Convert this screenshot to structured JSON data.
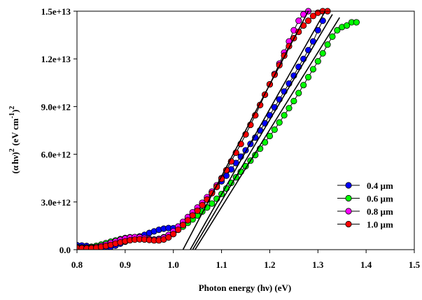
{
  "chart_data": {
    "type": "scatter",
    "xlabel": "Photon energy (hν) (eV)",
    "ylabel": {
      "symbol_a": "α",
      "symbol_h": "h",
      "symbol_nu": "ν",
      "exp1": "2",
      "unit": "(eV cm",
      "unit_exp": "-1",
      "unit_close": ")",
      "unit_exp2": "2"
    },
    "xlim": [
      0.8,
      1.5
    ],
    "ylim": [
      0,
      15000000000000.0
    ],
    "x_ticks": [
      "0.8",
      "0.9",
      "1.0",
      "1.1",
      "1.2",
      "1.3",
      "1.4",
      "1.5"
    ],
    "y_ticks": [
      "0.0",
      "3.0e+12",
      "6.0e+12",
      "9.0e+12",
      "1.2e+13",
      "1.5e+13"
    ],
    "grid": false,
    "legend_position": "bottom-right",
    "series": [
      {
        "name": "0.4 µm",
        "color": "#0000ff",
        "x": [
          0.8,
          0.81,
          0.82,
          0.83,
          0.84,
          0.85,
          0.86,
          0.87,
          0.88,
          0.89,
          0.9,
          0.91,
          0.92,
          0.93,
          0.94,
          0.95,
          0.96,
          0.97,
          0.98,
          0.99,
          1.0,
          1.01,
          1.02,
          1.03,
          1.04,
          1.05,
          1.06,
          1.07,
          1.08,
          1.09,
          1.1,
          1.11,
          1.12,
          1.13,
          1.14,
          1.15,
          1.16,
          1.17,
          1.18,
          1.19,
          1.2,
          1.21,
          1.22,
          1.23,
          1.24,
          1.25,
          1.26,
          1.27,
          1.28,
          1.29,
          1.3,
          1.31
        ],
        "y": [
          280000000000.0,
          260000000000.0,
          230000000000.0,
          180000000000.0,
          130000000000.0,
          100000000000.0,
          120000000000.0,
          180000000000.0,
          260000000000.0,
          380000000000.0,
          500000000000.0,
          620000000000.0,
          730000000000.0,
          830000000000.0,
          930000000000.0,
          1050000000000.0,
          1150000000000.0,
          1250000000000.0,
          1320000000000.0,
          1360000000000.0,
          1350000000000.0,
          1450000000000.0,
          1650000000000.0,
          1950000000000.0,
          2250000000000.0,
          2550000000000.0,
          2900000000000.0,
          3250000000000.0,
          3600000000000.0,
          3950000000000.0,
          4300000000000.0,
          4650000000000.0,
          5050000000000.0,
          5450000000000.0,
          5850000000000.0,
          6250000000000.0,
          6650000000000.0,
          7050000000000.0,
          7500000000000.0,
          7950000000000.0,
          8450000000000.0,
          8950000000000.0,
          9450000000000.0,
          9950000000000.0,
          10450000000000.0,
          10950000000000.0,
          11500000000000.0,
          12000000000000.0,
          12550000000000.0,
          13100000000000.0,
          13800000000000.0,
          14400000000000.0
        ]
      },
      {
        "name": "0.6 µm",
        "color": "#00ff00",
        "x": [
          0.8,
          0.81,
          0.82,
          0.83,
          0.84,
          0.85,
          0.86,
          0.87,
          0.88,
          0.89,
          0.9,
          0.91,
          0.92,
          0.93,
          0.94,
          0.95,
          0.96,
          0.97,
          0.98,
          0.99,
          1.0,
          1.01,
          1.02,
          1.03,
          1.04,
          1.05,
          1.06,
          1.07,
          1.08,
          1.09,
          1.1,
          1.11,
          1.12,
          1.13,
          1.14,
          1.15,
          1.16,
          1.17,
          1.18,
          1.19,
          1.2,
          1.21,
          1.22,
          1.23,
          1.24,
          1.25,
          1.26,
          1.27,
          1.28,
          1.29,
          1.3,
          1.31,
          1.32,
          1.33,
          1.34,
          1.35,
          1.36,
          1.37,
          1.38
        ],
        "y": [
          160000000000.0,
          140000000000.0,
          130000000000.0,
          170000000000.0,
          240000000000.0,
          320000000000.0,
          410000000000.0,
          500000000000.0,
          580000000000.0,
          660000000000.0,
          730000000000.0,
          780000000000.0,
          790000000000.0,
          770000000000.0,
          720000000000.0,
          670000000000.0,
          640000000000.0,
          680000000000.0,
          780000000000.0,
          920000000000.0,
          1080000000000.0,
          1250000000000.0,
          1450000000000.0,
          1680000000000.0,
          1900000000000.0,
          2150000000000.0,
          2400000000000.0,
          2650000000000.0,
          2900000000000.0,
          3200000000000.0,
          3500000000000.0,
          3850000000000.0,
          4200000000000.0,
          4550000000000.0,
          4900000000000.0,
          5250000000000.0,
          5600000000000.0,
          5950000000000.0,
          6350000000000.0,
          6750000000000.0,
          7150000000000.0,
          7550000000000.0,
          8000000000000.0,
          8450000000000.0,
          8900000000000.0,
          9350000000000.0,
          9850000000000.0,
          10350000000000.0,
          10850000000000.0,
          11350000000000.0,
          11850000000000.0,
          12350000000000.0,
          12900000000000.0,
          13400000000000.0,
          13800000000000.0,
          14000000000000.0,
          14100000000000.0,
          14300000000000.0,
          14300000000000.0
        ]
      },
      {
        "name": "0.8 µm",
        "color": "#ff00ff",
        "x": [
          0.8,
          0.81,
          0.82,
          0.83,
          0.84,
          0.85,
          0.86,
          0.87,
          0.88,
          0.89,
          0.9,
          0.91,
          0.92,
          0.93,
          0.94,
          0.95,
          0.96,
          0.97,
          0.98,
          0.99,
          1.0,
          1.01,
          1.02,
          1.03,
          1.04,
          1.05,
          1.06,
          1.07,
          1.08,
          1.09,
          1.1,
          1.11,
          1.12,
          1.13,
          1.14,
          1.15,
          1.16,
          1.17,
          1.18,
          1.19,
          1.2,
          1.21,
          1.22,
          1.23,
          1.24,
          1.25,
          1.26,
          1.27,
          1.28
        ],
        "y": [
          120000000000.0,
          110000000000.0,
          100000000000.0,
          120000000000.0,
          170000000000.0,
          240000000000.0,
          320000000000.0,
          420000000000.0,
          520000000000.0,
          620000000000.0,
          700000000000.0,
          760000000000.0,
          790000000000.0,
          780000000000.0,
          730000000000.0,
          670000000000.0,
          630000000000.0,
          650000000000.0,
          750000000000.0,
          920000000000.0,
          1150000000000.0,
          1450000000000.0,
          1750000000000.0,
          2050000000000.0,
          2350000000000.0,
          2650000000000.0,
          2950000000000.0,
          3300000000000.0,
          3650000000000.0,
          4050000000000.0,
          4500000000000.0,
          5000000000000.0,
          5550000000000.0,
          6100000000000.0,
          6650000000000.0,
          7250000000000.0,
          7850000000000.0,
          8450000000000.0,
          9100000000000.0,
          9750000000000.0,
          10400000000000.0,
          11050000000000.0,
          11700000000000.0,
          12400000000000.0,
          13100000000000.0,
          13800000000000.0,
          14400000000000.0,
          14800000000000.0,
          15000000000000.0
        ]
      },
      {
        "name": "1.0 µm",
        "color": "#ff0000",
        "x": [
          0.8,
          0.81,
          0.82,
          0.83,
          0.84,
          0.85,
          0.86,
          0.87,
          0.88,
          0.89,
          0.9,
          0.91,
          0.92,
          0.93,
          0.94,
          0.95,
          0.96,
          0.97,
          0.98,
          0.99,
          1.0,
          1.01,
          1.02,
          1.03,
          1.04,
          1.05,
          1.06,
          1.07,
          1.08,
          1.09,
          1.1,
          1.11,
          1.12,
          1.13,
          1.14,
          1.15,
          1.16,
          1.17,
          1.18,
          1.19,
          1.2,
          1.21,
          1.22,
          1.23,
          1.24,
          1.25,
          1.26,
          1.27,
          1.28,
          1.29,
          1.3,
          1.31,
          1.32
        ],
        "y": [
          100000000000.0,
          90000000000.0,
          80000000000.0,
          90000000000.0,
          120000000000.0,
          170000000000.0,
          230000000000.0,
          300000000000.0,
          380000000000.0,
          460000000000.0,
          530000000000.0,
          590000000000.0,
          630000000000.0,
          650000000000.0,
          640000000000.0,
          610000000000.0,
          580000000000.0,
          580000000000.0,
          640000000000.0,
          770000000000.0,
          980000000000.0,
          1250000000000.0,
          1550000000000.0,
          1850000000000.0,
          2150000000000.0,
          2450000000000.0,
          2800000000000.0,
          3150000000000.0,
          3550000000000.0,
          3950000000000.0,
          4450000000000.0,
          5000000000000.0,
          5550000000000.0,
          6100000000000.0,
          6650000000000.0,
          7250000000000.0,
          7850000000000.0,
          8450000000000.0,
          9100000000000.0,
          9750000000000.0,
          10400000000000.0,
          11000000000000.0,
          11600000000000.0,
          12200000000000.0,
          12800000000000.0,
          13300000000000.0,
          13700000000000.0,
          14100000000000.0,
          14400000000000.0,
          14700000000000.0,
          14900000000000.0,
          15000000000000.0,
          15000000000000.0
        ]
      }
    ],
    "fit_lines": [
      {
        "x": [
          1.02,
          1.28
        ],
        "y": [
          0,
          15000000000000.0
        ]
      },
      {
        "x": [
          1.04,
          1.33
        ],
        "y": [
          0,
          14800000000000.0
        ]
      },
      {
        "x": [
          1.045,
          1.345
        ],
        "y": [
          0,
          14600000000000.0
        ]
      },
      {
        "x": [
          1.035,
          1.315
        ],
        "y": [
          0,
          15000000000000.0
        ]
      }
    ]
  }
}
